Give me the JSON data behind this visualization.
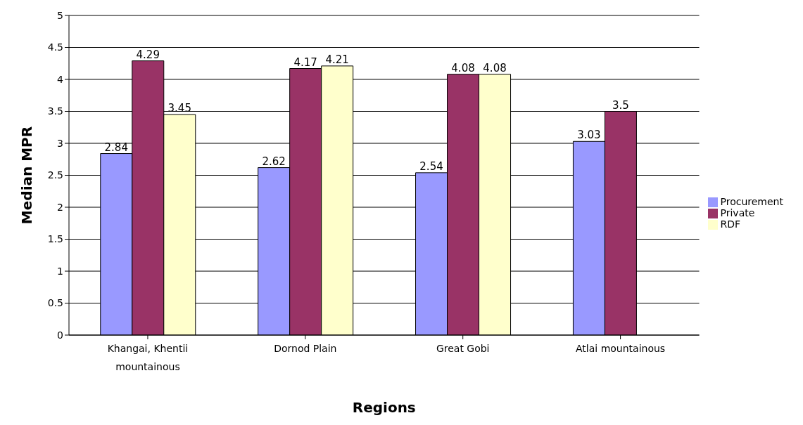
{
  "chart_data": {
    "type": "bar",
    "xlabel": "Regions",
    "ylabel": "Median MPR",
    "categories": [
      "Khangai, Khentii mountainous",
      "Dornod Plain",
      "Great Gobi",
      "Atlai mountainous"
    ],
    "series": [
      {
        "name": "Procurement",
        "color": "#9999ff",
        "values": [
          2.84,
          2.62,
          2.54,
          3.03
        ]
      },
      {
        "name": "Private",
        "color": "#993366",
        "values": [
          4.29,
          4.17,
          4.08,
          3.5
        ]
      },
      {
        "name": "RDF",
        "color": "#ffffcc",
        "values": [
          3.45,
          4.21,
          4.08,
          null
        ]
      }
    ],
    "ylim": [
      0,
      5
    ],
    "yticks": [
      0,
      0.5,
      1,
      1.5,
      2,
      2.5,
      3,
      3.5,
      4,
      4.5,
      5
    ],
    "grid": "y",
    "legend": "right",
    "data_labels": true
  }
}
